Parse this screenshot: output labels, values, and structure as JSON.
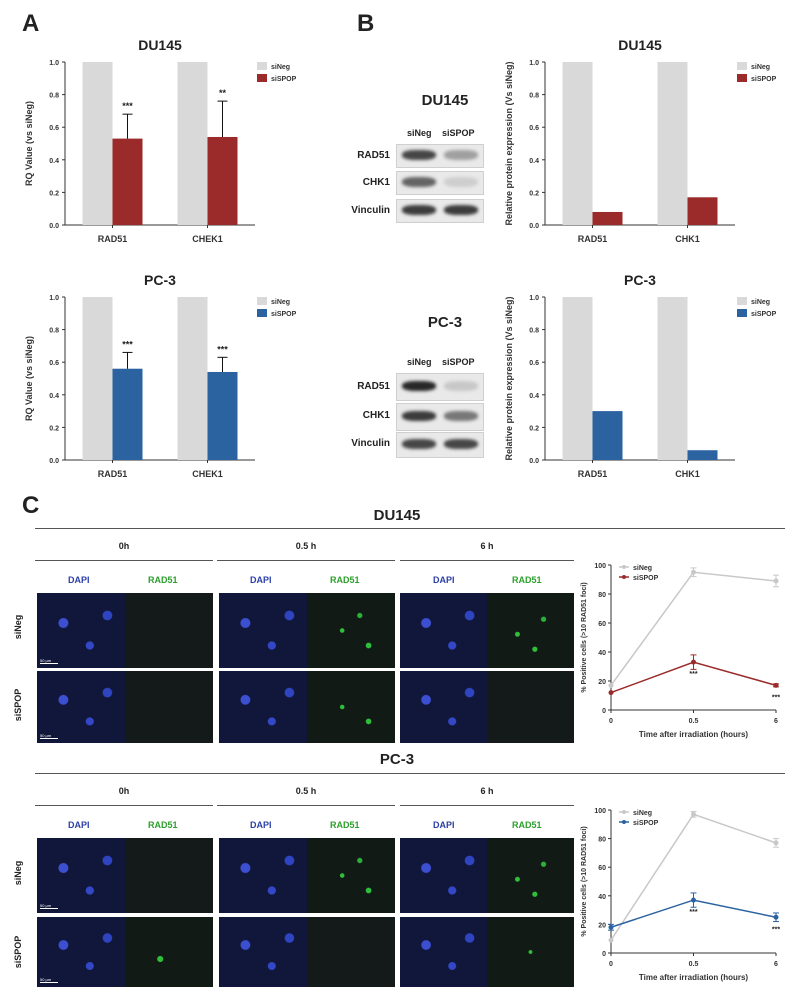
{
  "panels": {
    "A": "A",
    "B": "B",
    "C": "C"
  },
  "legend": {
    "siNeg": "siNeg",
    "siSPOP": "siSPOP"
  },
  "colors": {
    "siNeg": "#d9d9d9",
    "du145": "#9b2a2a",
    "pc3": "#2b63a0"
  },
  "chart_data": [
    {
      "id": "A-DU145",
      "type": "bar",
      "title": "DU145",
      "ylabel": "RQ Value (vs siNeg)",
      "ylim": [
        0,
        1.0
      ],
      "yticks": [
        "0.0",
        "0.2",
        "0.4",
        "0.6",
        "0.8",
        "1.0"
      ],
      "categories": [
        "RAD51",
        "CHEK1"
      ],
      "series": [
        {
          "name": "siNeg",
          "values": [
            1.0,
            1.0
          ]
        },
        {
          "name": "siSPOP",
          "values": [
            0.53,
            0.54
          ],
          "errors": [
            0.15,
            0.22
          ]
        }
      ],
      "annotations": [
        "***",
        "**"
      ],
      "legend_position": "top-right"
    },
    {
      "id": "A-PC3",
      "type": "bar",
      "title": "PC-3",
      "ylabel": "RQ Value (vs siNeg)",
      "ylim": [
        0,
        1.0
      ],
      "yticks": [
        "0.0",
        "0.2",
        "0.4",
        "0.6",
        "0.8",
        "1.0"
      ],
      "categories": [
        "RAD51",
        "CHEK1"
      ],
      "series": [
        {
          "name": "siNeg",
          "values": [
            1.0,
            1.0
          ]
        },
        {
          "name": "siSPOP",
          "values": [
            0.56,
            0.54
          ],
          "errors": [
            0.1,
            0.09
          ]
        }
      ],
      "annotations": [
        "***",
        "***"
      ],
      "legend_position": "top-right"
    },
    {
      "id": "B-DU145",
      "type": "bar",
      "title": "DU145",
      "ylabel": "Relative protein expression (Vs siNeg)",
      "ylim": [
        0,
        1.0
      ],
      "yticks": [
        "0.0",
        "0.2",
        "0.4",
        "0.6",
        "0.8",
        "1.0"
      ],
      "categories": [
        "RAD51",
        "CHK1"
      ],
      "series": [
        {
          "name": "siNeg",
          "values": [
            1.0,
            1.0
          ]
        },
        {
          "name": "siSPOP",
          "values": [
            0.08,
            0.17
          ]
        }
      ],
      "annotations": [],
      "legend_position": "top-right"
    },
    {
      "id": "B-PC3",
      "type": "bar",
      "title": "PC-3",
      "ylabel": "Relative protein expression (Vs siNeg)",
      "ylim": [
        0,
        1.0
      ],
      "yticks": [
        "0.0",
        "0.2",
        "0.4",
        "0.6",
        "0.8",
        "1.0"
      ],
      "categories": [
        "RAD51",
        "CHK1"
      ],
      "series": [
        {
          "name": "siNeg",
          "values": [
            1.0,
            1.0
          ]
        },
        {
          "name": "siSPOP",
          "values": [
            0.3,
            0.06
          ]
        }
      ],
      "annotations": [],
      "legend_position": "top-right"
    },
    {
      "id": "C-DU145",
      "type": "line",
      "ylabel": "% Positive cells (>10 RAD51 foci)",
      "xlabel": "Time after irradiation (hours)",
      "ylim": [
        0,
        100
      ],
      "yticks": [
        "0",
        "20",
        "40",
        "60",
        "80",
        "100"
      ],
      "xticks": [
        "0",
        "0.5",
        "6"
      ],
      "series": [
        {
          "name": "siNeg",
          "values": [
            17,
            95,
            89
          ],
          "errors": [
            0,
            3,
            4
          ]
        },
        {
          "name": "siSPOP",
          "values": [
            12,
            33,
            17
          ],
          "errors": [
            0,
            5,
            1
          ]
        }
      ],
      "annotations": [
        "***",
        "***"
      ],
      "legend_position": "top-left"
    },
    {
      "id": "C-PC3",
      "type": "line",
      "ylabel": "% Positive cells (>10 RAD51 foci)",
      "xlabel": "Time after irradiation (hours)",
      "ylim": [
        0,
        100
      ],
      "yticks": [
        "0",
        "20",
        "40",
        "60",
        "80",
        "100"
      ],
      "xticks": [
        "0",
        "0.5",
        "6"
      ],
      "series": [
        {
          "name": "siNeg",
          "values": [
            9,
            97,
            77
          ],
          "errors": [
            0,
            2,
            3
          ]
        },
        {
          "name": "siSPOP",
          "values": [
            18,
            37,
            25
          ],
          "errors": [
            2,
            5,
            3
          ]
        }
      ],
      "annotations": [
        "***",
        "***"
      ],
      "legend_position": "top-left"
    }
  ],
  "blots": [
    {
      "title": "DU145",
      "lanes": [
        "siNeg",
        "siSPOP"
      ],
      "rows": [
        {
          "label": "RAD51",
          "intensity": [
            0.8,
            0.35
          ]
        },
        {
          "label": "CHK1",
          "intensity": [
            0.65,
            0.12
          ]
        },
        {
          "label": "Vinculin",
          "intensity": [
            0.85,
            0.85
          ]
        }
      ]
    },
    {
      "title": "PC-3",
      "lanes": [
        "siNeg",
        "siSPOP"
      ],
      "rows": [
        {
          "label": "RAD51",
          "intensity": [
            0.95,
            0.15
          ]
        },
        {
          "label": "CHK1",
          "intensity": [
            0.85,
            0.55
          ]
        },
        {
          "label": "Vinculin",
          "intensity": [
            0.8,
            0.8
          ]
        }
      ]
    }
  ],
  "C": {
    "du145_title": "DU145",
    "pc3_title": "PC-3",
    "timepoints": [
      "0h",
      "0.5 h",
      "6 h"
    ],
    "channels": {
      "dapi": "DAPI",
      "rad51": "RAD51"
    },
    "rows": [
      "siNeg",
      "siSPOP"
    ],
    "scale": "50 µm"
  }
}
